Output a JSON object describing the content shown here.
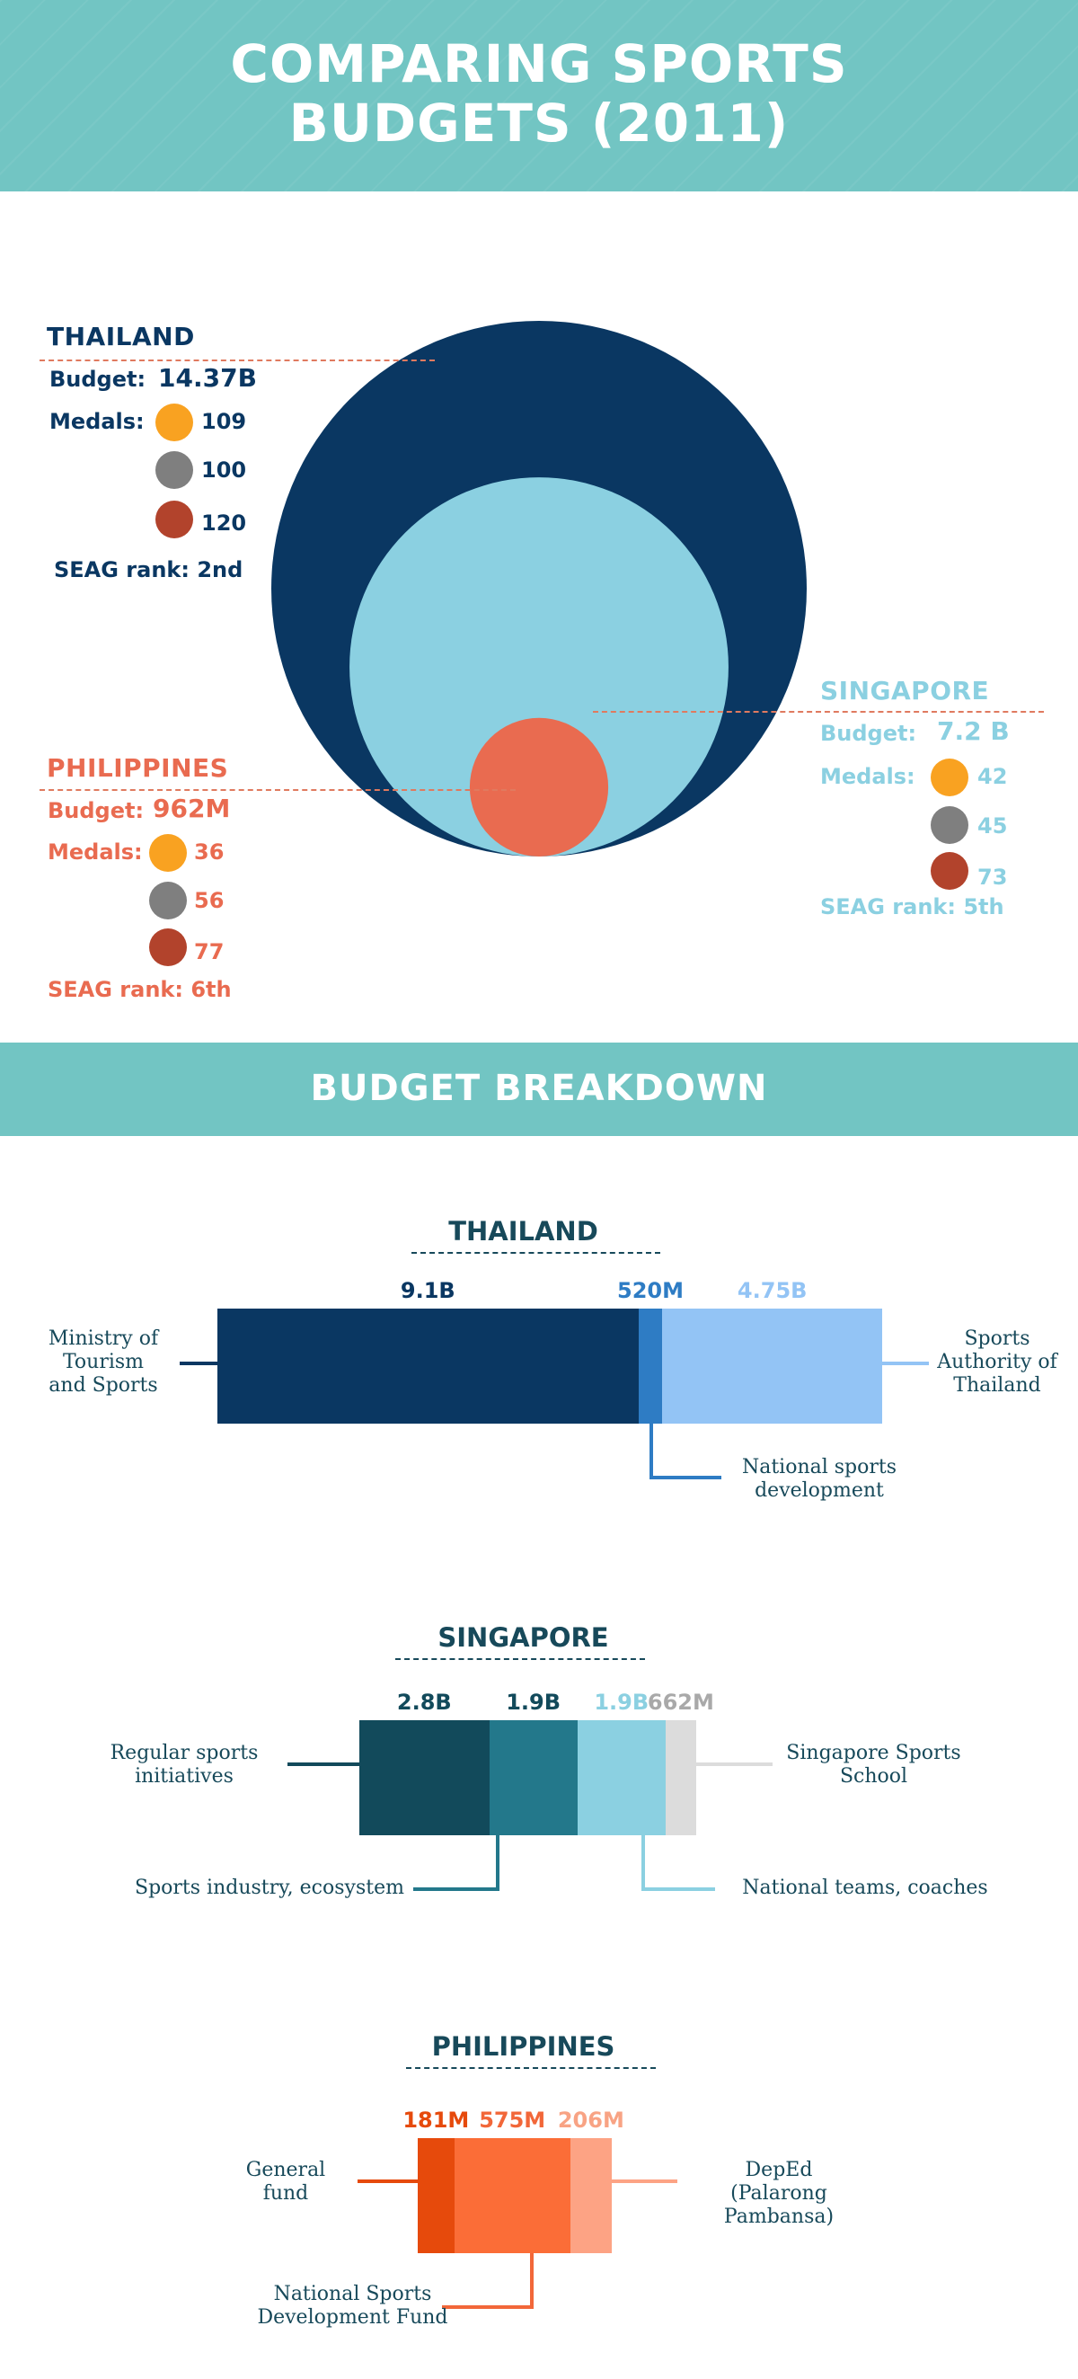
{
  "header": {
    "title_line1": "COMPARING SPORTS",
    "title_line2": "BUDGETS (2011)"
  },
  "section2": {
    "title": "BUDGET BREAKDOWN"
  },
  "countries": [
    {
      "name": "THAILAND",
      "budget_label": "Budget:",
      "budget": "14.37B",
      "budget_value": 14.37,
      "medals_label": "Medals:",
      "gold": "109",
      "silver": "100",
      "bronze": "120",
      "rank": "SEAG rank: 2nd",
      "color": "#0a3762"
    },
    {
      "name": "SINGAPORE",
      "budget_label": "Budget:",
      "budget": "7.2 B",
      "budget_value": 7.2,
      "medals_label": "Medals:",
      "gold": "42",
      "silver": "45",
      "bronze": "73",
      "rank": "SEAG rank: 5th",
      "color": "#8bd0e1"
    },
    {
      "name": "PHILIPPINES",
      "budget_label": "Budget:",
      "budget": "962M",
      "budget_value": 0.962,
      "medals_label": "Medals:",
      "gold": "36",
      "silver": "56",
      "bronze": "77",
      "rank": "SEAG rank: 6th",
      "color": "#e96b50"
    }
  ],
  "medal_colors": {
    "gold": "#f9a221",
    "silver": "#7f7f7f",
    "bronze": "#b2432c"
  },
  "chart_data": [
    {
      "type": "bubble",
      "categories": [
        "THAILAND",
        "SINGAPORE",
        "PHILIPPINES"
      ],
      "values": [
        14.37,
        7.2,
        0.962
      ],
      "value_labels": [
        "14.37B",
        "7.2 B",
        "962M"
      ],
      "colors": [
        "#0a3762",
        "#8bd0e1",
        "#e96b50"
      ]
    },
    {
      "type": "bar",
      "title": "THAILAND",
      "segments": [
        {
          "label": "9.1B",
          "value": 9.1,
          "name": "Ministry of Tourism and Sports",
          "color": "#0a3762",
          "label_color": "#0a3762"
        },
        {
          "label": "520M",
          "value": 0.52,
          "name": "National sports development",
          "color": "#2e7cc4",
          "label_color": "#2e7cc4"
        },
        {
          "label": "4.75B",
          "value": 4.75,
          "name": "Sports Authority of Thailand",
          "color": "#93c4f5",
          "label_color": "#93c4f5"
        }
      ]
    },
    {
      "type": "bar",
      "title": "SINGAPORE",
      "segments": [
        {
          "label": "2.8B",
          "value": 2.8,
          "name": "Regular sports initiatives",
          "color": "#124a5b",
          "label_color": "#124a5b"
        },
        {
          "label": "1.9B",
          "value": 1.9,
          "name": "Sports industry, ecosystem",
          "color": "#23788b",
          "label_color": "#124a5b"
        },
        {
          "label": "1.9B",
          "value": 1.9,
          "name": "National teams, coaches",
          "color": "#8bd0e1",
          "label_color": "#8bd0e1"
        },
        {
          "label": "662M",
          "value": 0.662,
          "name": "Singapore Sports School",
          "color": "#dcdcdc",
          "label_color": "#a9a9a9"
        }
      ]
    },
    {
      "type": "bar",
      "title": "PHILIPPINES",
      "segments": [
        {
          "label": "181M",
          "value": 181,
          "name": "General fund",
          "color": "#e64a0c",
          "label_color": "#e64a0c"
        },
        {
          "label": "575M",
          "value": 575,
          "name": "National Sports Development Fund",
          "color": "#fb6d37",
          "label_color": "#f26739"
        },
        {
          "label": "206M",
          "value": 206,
          "name": "DepEd (Palarong Pambansa)",
          "color": "#fda384",
          "label_color": "#f8a384"
        }
      ]
    }
  ],
  "breakdown_labels": {
    "thailand": {
      "left": "Ministry of\nTourism\nand Sports",
      "right": "Sports\nAuthority of\nThailand",
      "bottom": "National sports\ndevelopment"
    },
    "singapore": {
      "left": "Regular sports\ninitiatives",
      "right": "Singapore Sports\nSchool",
      "bottom_left": "Sports industry, ecosystem",
      "bottom_right": "National teams, coaches"
    },
    "philippines": {
      "left": "General\nfund",
      "right": "DepEd\n(Palarong Pambansa)",
      "bottom": "National Sports\nDevelopment Fund"
    }
  }
}
